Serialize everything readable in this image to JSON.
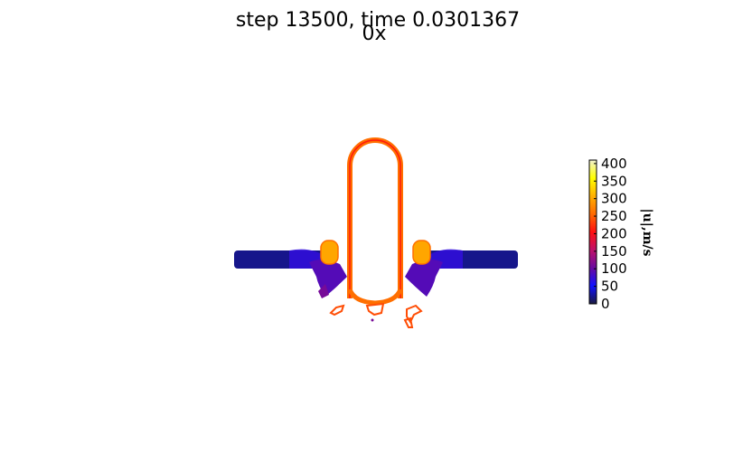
{
  "chart_data": {
    "type": "heatmap",
    "title": "step 13500, time 0.0301367",
    "subtitle": "0x",
    "colorbar": {
      "label": "|u|,m/s",
      "min": 0,
      "max": 410,
      "ticks": [
        "0",
        "50",
        "100",
        "150",
        "200",
        "250",
        "300",
        "350",
        "400"
      ],
      "colormap": "gnuplot-like",
      "stops": [
        "#1a1a40",
        "#1010ff",
        "#6a0aa0",
        "#c0106a",
        "#ff1010",
        "#ff6a00",
        "#ffb000",
        "#ffff00",
        "#f0f0d0"
      ]
    },
    "field_regions": {
      "channel_speed": 20,
      "channel_edge_speed": 70,
      "inlet_swirl_speed": 90,
      "jet_tube_speed": 260,
      "jet_tube_inner_speed": 210,
      "side_bulb_speed": 300,
      "droplet_speed": 240,
      "spray_speed": 110
    }
  }
}
